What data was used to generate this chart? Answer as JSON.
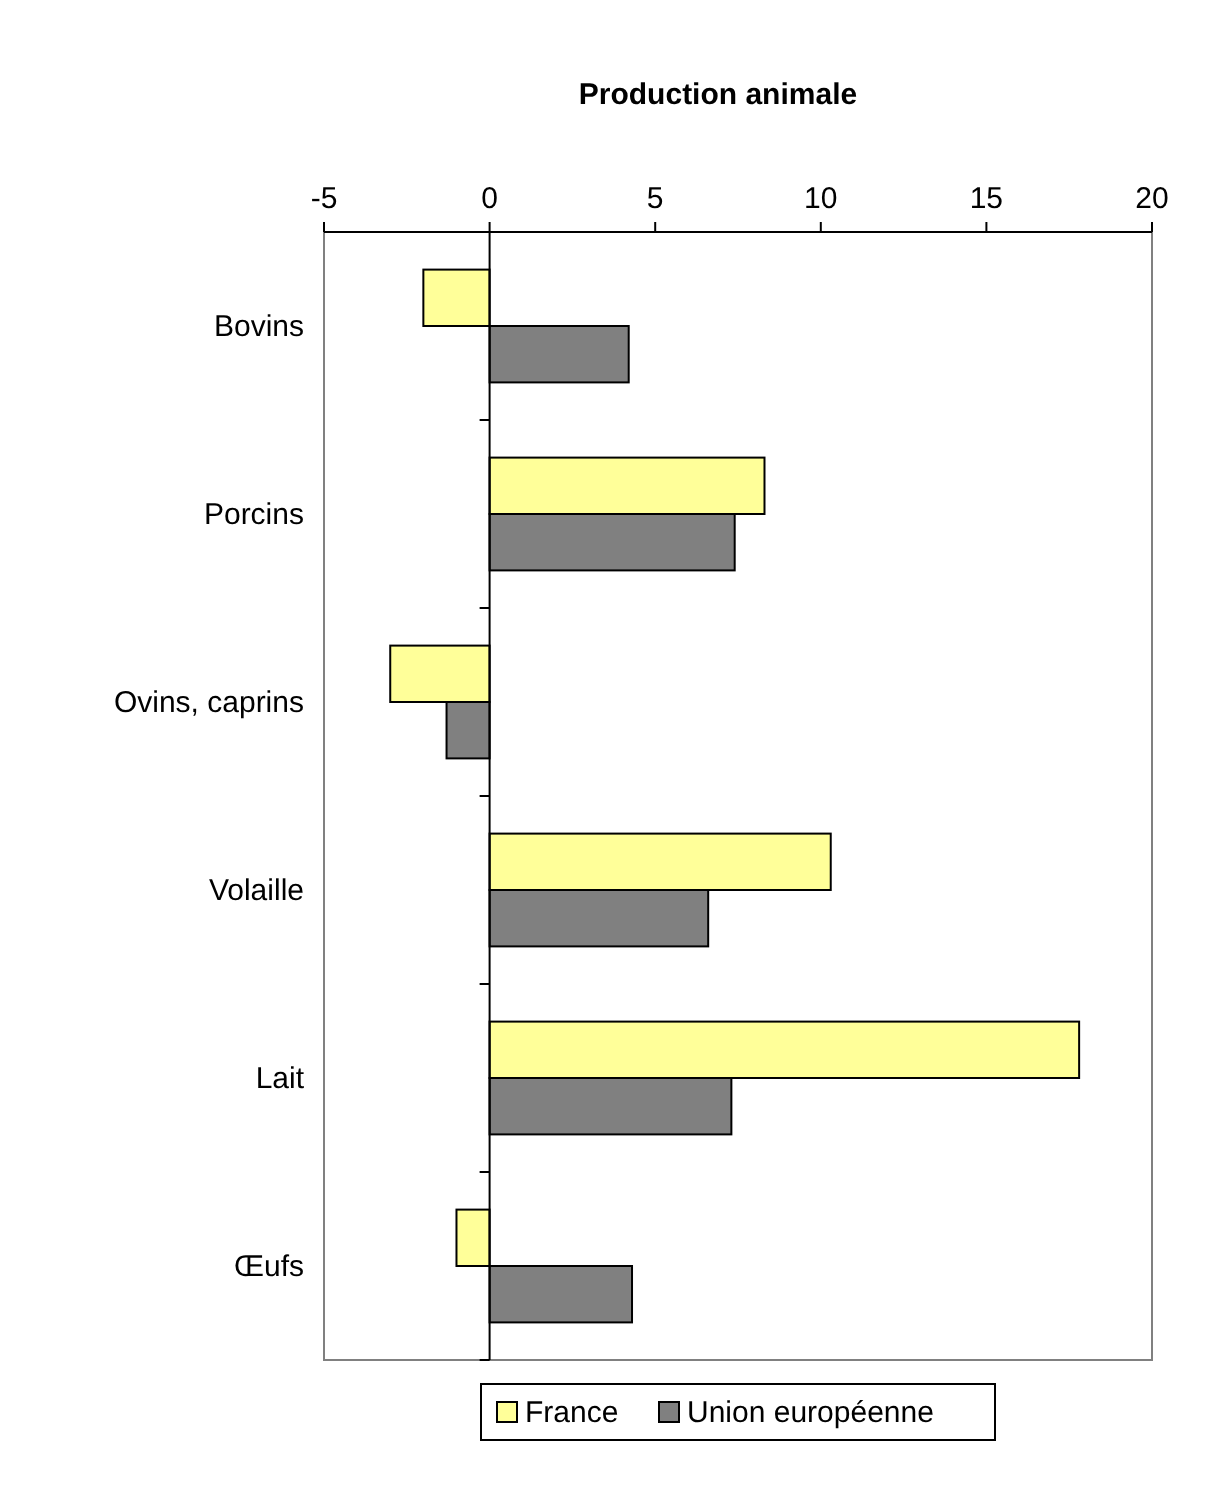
{
  "chart_data": {
    "type": "bar",
    "orientation": "horizontal",
    "title": "Production animale",
    "categories": [
      "Bovins",
      "Porcins",
      "Ovins, caprins",
      "Volaille",
      "Lait",
      "Œufs"
    ],
    "series": [
      {
        "name": "France",
        "color": "#ffff99",
        "values": [
          -2.0,
          8.3,
          -3.0,
          10.3,
          17.8,
          -1.0
        ]
      },
      {
        "name": "Union européenne",
        "color": "#808080",
        "values": [
          4.2,
          7.4,
          -1.3,
          6.6,
          7.3,
          4.3
        ]
      }
    ],
    "xlim": [
      -5,
      20
    ],
    "xticks": [
      -5,
      0,
      5,
      10,
      15,
      20
    ],
    "legend": "bottom"
  }
}
